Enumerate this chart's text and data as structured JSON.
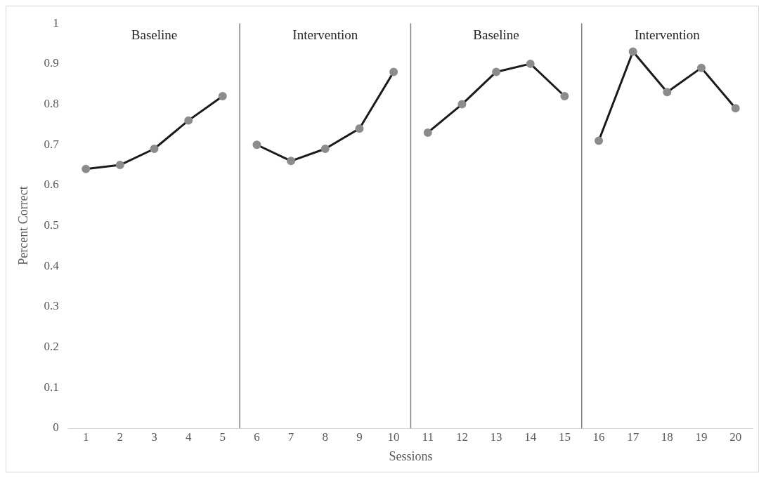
{
  "chart_data": {
    "type": "line",
    "xlabel": "Sessions",
    "ylabel": "Percent Correct",
    "xlim": [
      0.5,
      20.5
    ],
    "xticks": [
      1,
      2,
      3,
      4,
      5,
      6,
      7,
      8,
      9,
      10,
      11,
      12,
      13,
      14,
      15,
      16,
      17,
      18,
      19,
      20
    ],
    "ylim": [
      0,
      1
    ],
    "yticks": [
      0,
      0.1,
      0.2,
      0.3,
      0.4,
      0.5,
      0.6,
      0.7,
      0.8,
      0.9,
      1
    ],
    "grid": false,
    "legend": false,
    "marker": "circle",
    "line_style": "solid",
    "series": [
      {
        "color": "#1a1a1a",
        "x": [
          1,
          2,
          3,
          4,
          5
        ],
        "values": [
          0.64,
          0.65,
          0.69,
          0.76,
          0.82
        ]
      },
      {
        "color": "#1a1a1a",
        "x": [
          6,
          7,
          8,
          9,
          10
        ],
        "values": [
          0.7,
          0.66,
          0.69,
          0.74,
          0.88
        ]
      },
      {
        "color": "#1a1a1a",
        "x": [
          11,
          12,
          13,
          14,
          15
        ],
        "values": [
          0.73,
          0.8,
          0.88,
          0.9,
          0.82
        ]
      },
      {
        "color": "#1a1a1a",
        "x": [
          16,
          17,
          18,
          19,
          20
        ],
        "values": [
          0.71,
          0.93,
          0.83,
          0.89,
          0.79
        ]
      }
    ],
    "ref_lines": [
      {
        "axis": "x",
        "value": 5.5,
        "color": "#7f7f7f"
      },
      {
        "axis": "x",
        "value": 10.5,
        "color": "#7f7f7f"
      },
      {
        "axis": "x",
        "value": 15.5,
        "color": "#7f7f7f"
      }
    ],
    "annotations": [
      "Baseline",
      "Intervention",
      "Baseline",
      "Intervention"
    ]
  }
}
